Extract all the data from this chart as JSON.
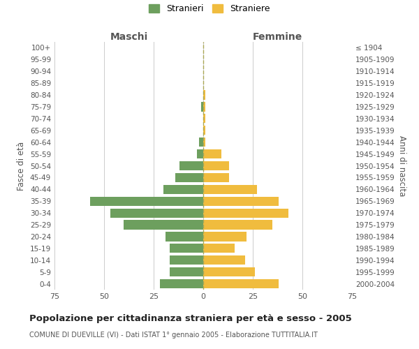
{
  "age_groups": [
    "100+",
    "95-99",
    "90-94",
    "85-89",
    "80-84",
    "75-79",
    "70-74",
    "65-69",
    "60-64",
    "55-59",
    "50-54",
    "45-49",
    "40-44",
    "35-39",
    "30-34",
    "25-29",
    "20-24",
    "15-19",
    "10-14",
    "5-9",
    "0-4"
  ],
  "birth_years": [
    "≤ 1904",
    "1905-1909",
    "1910-1914",
    "1915-1919",
    "1920-1924",
    "1925-1929",
    "1930-1934",
    "1935-1939",
    "1940-1944",
    "1945-1949",
    "1950-1954",
    "1955-1959",
    "1960-1964",
    "1965-1969",
    "1970-1974",
    "1975-1979",
    "1980-1984",
    "1985-1989",
    "1990-1994",
    "1995-1999",
    "2000-2004"
  ],
  "maschi": [
    0,
    0,
    0,
    0,
    0,
    1,
    0,
    0,
    2,
    3,
    12,
    14,
    20,
    57,
    47,
    40,
    19,
    17,
    17,
    17,
    22
  ],
  "femmine": [
    0,
    0,
    0,
    0,
    1,
    1,
    1,
    1,
    1,
    9,
    13,
    13,
    27,
    38,
    43,
    35,
    22,
    16,
    21,
    26,
    38
  ],
  "male_color": "#6d9f5e",
  "female_color": "#f0bc3e",
  "title": "Popolazione per cittadinanza straniera per età e sesso - 2005",
  "subtitle": "COMUNE DI DUEVILLE (VI) - Dati ISTAT 1° gennaio 2005 - Elaborazione TUTTITALIA.IT",
  "ylabel_left": "Fasce di età",
  "ylabel_right": "Anni di nascita",
  "label_maschi": "Maschi",
  "label_femmine": "Femmine",
  "legend_male": "Stranieri",
  "legend_female": "Straniere",
  "xlim": 75,
  "bg_color": "#ffffff",
  "grid_color": "#cccccc"
}
